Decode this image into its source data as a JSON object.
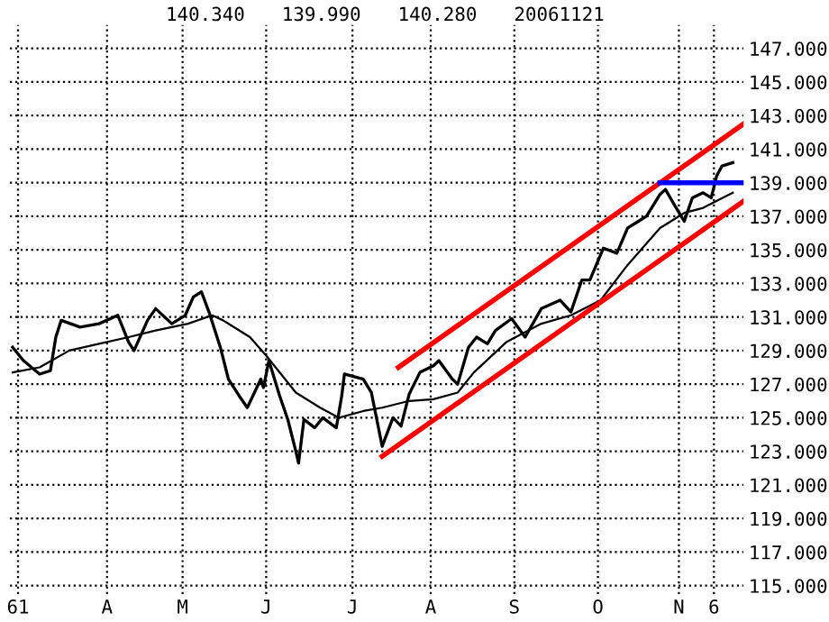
{
  "chart_data": {
    "type": "line",
    "annotations": [
      "140.340",
      "139.990",
      "140.280",
      "20061121"
    ],
    "xlim": [
      "2006-02-26",
      "2006-11-25"
    ],
    "xticks": [
      {
        "value": "2006-03-01",
        "label": "61"
      },
      {
        "value": "2006-04-03",
        "label": "A"
      },
      {
        "value": "2006-05-01",
        "label": "M"
      },
      {
        "value": "2006-06-01",
        "label": "J"
      },
      {
        "value": "2006-07-03",
        "label": "J"
      },
      {
        "value": "2006-08-01",
        "label": "A"
      },
      {
        "value": "2006-09-01",
        "label": "S"
      },
      {
        "value": "2006-10-02",
        "label": "O"
      },
      {
        "value": "2006-11-01",
        "label": "N"
      },
      {
        "value": "2006-11-14",
        "label": "6"
      }
    ],
    "ylim": [
      114.5,
      148.4
    ],
    "yticks": [
      {
        "value": 115,
        "label": "115.000"
      },
      {
        "value": 117,
        "label": "117.000"
      },
      {
        "value": 119,
        "label": "119.000"
      },
      {
        "value": 121,
        "label": "121.000"
      },
      {
        "value": 123,
        "label": "123.000"
      },
      {
        "value": 125,
        "label": "125.000"
      },
      {
        "value": 127,
        "label": "127.000"
      },
      {
        "value": 129,
        "label": "129.000"
      },
      {
        "value": 131,
        "label": "131.000"
      },
      {
        "value": 133,
        "label": "133.000"
      },
      {
        "value": 135,
        "label": "135.000"
      },
      {
        "value": 137,
        "label": "137.000"
      },
      {
        "value": 139,
        "label": "139.000"
      },
      {
        "value": 141,
        "label": "141.000"
      },
      {
        "value": 143,
        "label": "143.000"
      },
      {
        "value": 145,
        "label": "145.000"
      },
      {
        "value": 147,
        "label": "147.000"
      }
    ],
    "grid": true,
    "legend": false,
    "marker": "none",
    "line_style": "solid",
    "series": [
      {
        "color": "#000000",
        "x": [
          "2006-02-27",
          "2006-03-03",
          "2006-03-09",
          "2006-03-13",
          "2006-03-15",
          "2006-03-17",
          "2006-03-24",
          "2006-03-31",
          "2006-04-07",
          "2006-04-11",
          "2006-04-13",
          "2006-04-18",
          "2006-04-21",
          "2006-04-27",
          "2006-05-02",
          "2006-05-05",
          "2006-05-08",
          "2006-05-11",
          "2006-05-15",
          "2006-05-18",
          "2006-05-22",
          "2006-05-25",
          "2006-05-30",
          "2006-05-31",
          "2006-06-02",
          "2006-06-06",
          "2006-06-09",
          "2006-06-12",
          "2006-06-13",
          "2006-06-15",
          "2006-06-19",
          "2006-06-22",
          "2006-06-27",
          "2006-06-29",
          "2006-06-30",
          "2006-07-07",
          "2006-07-10",
          "2006-07-12",
          "2006-07-14",
          "2006-07-18",
          "2006-07-21",
          "2006-07-24",
          "2006-07-28",
          "2006-08-02",
          "2006-08-04",
          "2006-08-09",
          "2006-08-11",
          "2006-08-15",
          "2006-08-18",
          "2006-08-22",
          "2006-08-25",
          "2006-08-31",
          "2006-09-05",
          "2006-09-11",
          "2006-09-18",
          "2006-09-22",
          "2006-09-26",
          "2006-09-29",
          "2006-10-04",
          "2006-10-09",
          "2006-10-13",
          "2006-10-17",
          "2006-10-20",
          "2006-10-25",
          "2006-10-27",
          "2006-10-31",
          "2006-11-03",
          "2006-11-06",
          "2006-11-10",
          "2006-11-13",
          "2006-11-15",
          "2006-11-17",
          "2006-11-21"
        ],
        "values": [
          129.2,
          128.4,
          127.6,
          127.8,
          129.8,
          130.8,
          130.4,
          130.6,
          131.1,
          129.5,
          129.0,
          130.8,
          131.5,
          130.6,
          131.1,
          132.2,
          132.5,
          131.2,
          129.2,
          127.3,
          126.3,
          125.6,
          127.3,
          126.8,
          128.4,
          126.3,
          124.9,
          123.0,
          122.3,
          124.9,
          124.4,
          125.0,
          124.4,
          126.3,
          127.6,
          127.3,
          126.5,
          124.9,
          123.3,
          125.0,
          124.5,
          126.4,
          127.7,
          128.1,
          128.4,
          127.3,
          127.0,
          129.2,
          129.8,
          129.4,
          130.2,
          130.9,
          129.8,
          131.5,
          132.0,
          131.3,
          133.2,
          133.2,
          135.1,
          134.8,
          136.3,
          136.7,
          137.0,
          138.3,
          138.6,
          137.5,
          136.7,
          138.1,
          138.4,
          138.1,
          139.4,
          140.0,
          140.2
        ]
      },
      {
        "color": "#000000",
        "x": [
          "2006-02-27",
          "2006-03-09",
          "2006-03-20",
          "2006-03-31",
          "2006-04-11",
          "2006-04-21",
          "2006-05-03",
          "2006-05-12",
          "2006-05-16",
          "2006-05-26",
          "2006-06-01",
          "2006-06-12",
          "2006-06-21",
          "2006-06-28",
          "2006-07-07",
          "2006-07-14",
          "2006-07-24",
          "2006-08-02",
          "2006-08-11",
          "2006-08-17",
          "2006-08-29",
          "2006-09-11",
          "2006-09-22",
          "2006-10-03",
          "2006-10-13",
          "2006-10-25",
          "2006-11-03",
          "2006-11-10",
          "2006-11-21"
        ],
        "values": [
          127.7,
          128.0,
          129.0,
          129.4,
          129.8,
          130.2,
          130.6,
          131.1,
          130.8,
          129.8,
          128.7,
          126.5,
          125.6,
          125.0,
          125.4,
          125.6,
          126.0,
          126.1,
          126.5,
          127.7,
          129.5,
          130.6,
          131.1,
          132.0,
          134.1,
          136.3,
          137.2,
          137.5,
          138.4
        ]
      },
      {
        "color": "#ff0000",
        "x": [
          "2006-07-20",
          "2006-11-25"
        ],
        "values": [
          128.0,
          142.5
        ]
      },
      {
        "color": "#ff0000",
        "x": [
          "2006-07-14",
          "2006-11-25"
        ],
        "values": [
          122.7,
          137.9
        ]
      },
      {
        "color": "#0000ff",
        "x": [
          "2006-10-25",
          "2006-11-25"
        ],
        "values": [
          139.0,
          139.0
        ]
      }
    ]
  }
}
